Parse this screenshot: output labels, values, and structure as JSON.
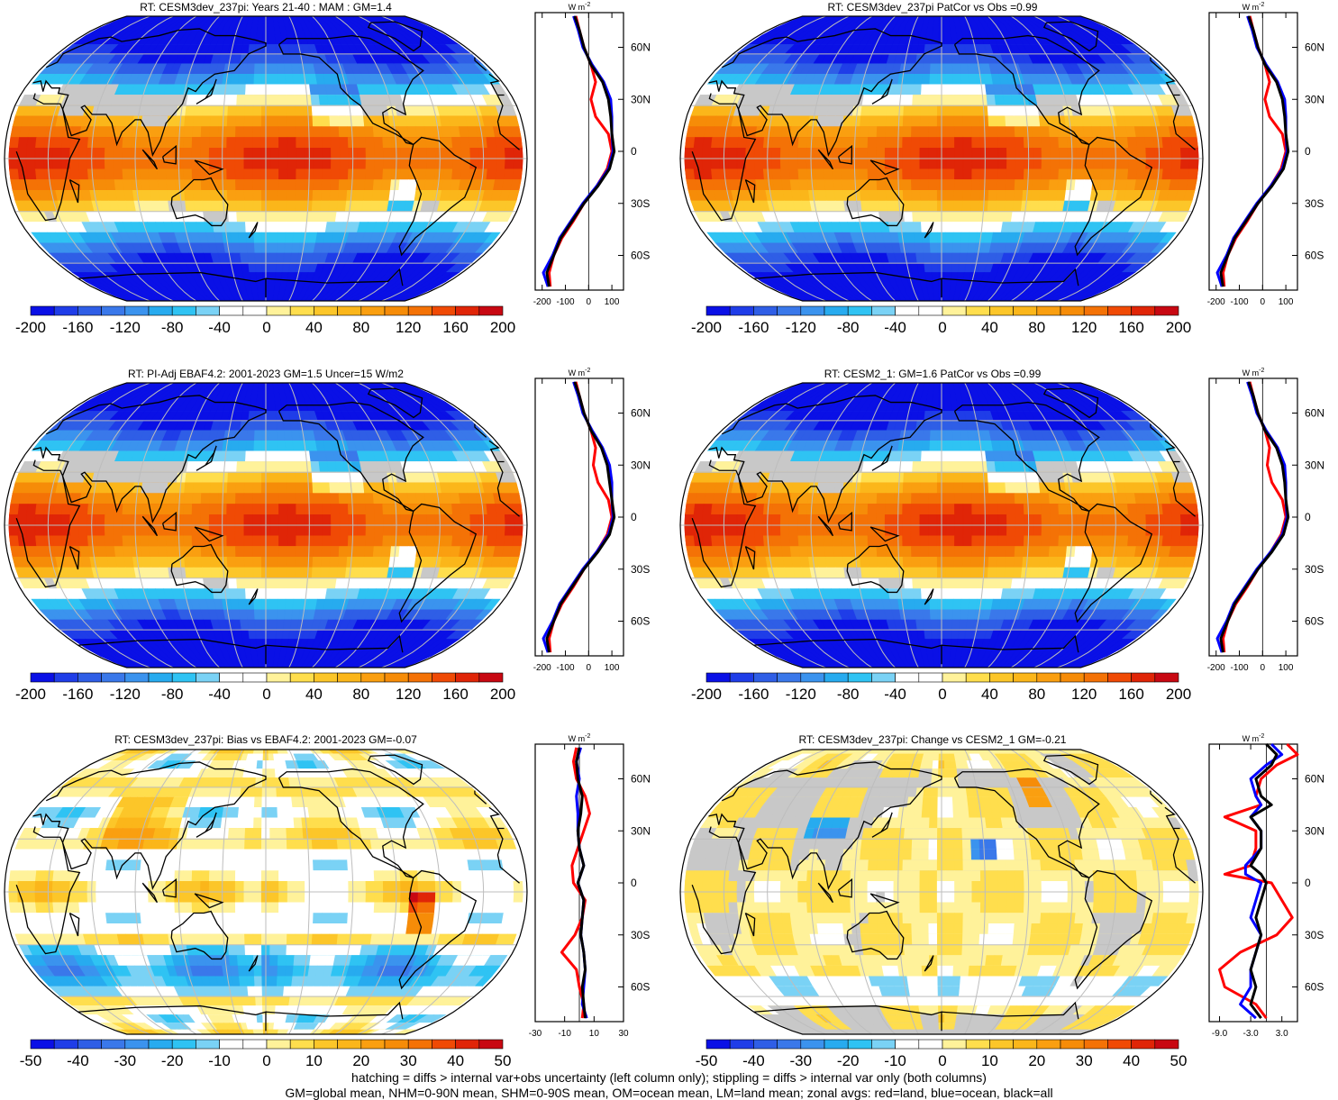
{
  "footer": {
    "line1": "hatching = diffs > internal var+obs uncertainty (left column only); stippling = diffs > internal var only (both columns)",
    "line2": "GM=global mean, NHM=0-90N mean, SHM=0-90S mean, OM=ocean mean, LM=land mean; zonal avgs: red=land, blue=ocean, black=all"
  },
  "colors": {
    "ocean_blue": "#0000ff",
    "land_red": "#ff0000",
    "all_black": "#000000",
    "land_mask": "#c8c8c8"
  },
  "chart_data": [
    {
      "type": "heatmap",
      "title": "RT: CESM3dev_237pi: Years 21-40 : MAM : GM=1.4",
      "pattern": "climatology",
      "stippled": true,
      "hatched": true,
      "colorbar": {
        "ticks": [
          "-200",
          "-160",
          "-120",
          "-80",
          "-40",
          "0",
          "40",
          "80",
          "120",
          "160",
          "200"
        ]
      },
      "zonal": {
        "unit": "W m",
        "unit_sup": "-2",
        "xticks": [
          "-200",
          "-100",
          "0",
          "100"
        ],
        "xlim": [
          -230,
          150
        ],
        "yticks": [
          "60N",
          "30N",
          "0",
          "30S",
          "60S"
        ],
        "lat": [
          78,
          70,
          60,
          50,
          40,
          30,
          20,
          10,
          0,
          -10,
          -20,
          -30,
          -40,
          -50,
          -60,
          -70,
          -78
        ],
        "all": [
          -60,
          -40,
          -20,
          10,
          60,
          85,
          95,
          100,
          110,
          90,
          40,
          -20,
          -70,
          -120,
          -150,
          -180,
          -170
        ],
        "ocean": [
          -65,
          -45,
          -25,
          15,
          65,
          95,
          100,
          100,
          105,
          85,
          35,
          -25,
          -75,
          -125,
          -155,
          -195,
          -175
        ],
        "land": [
          -55,
          -40,
          -20,
          10,
          30,
          10,
          30,
          85,
          100,
          80,
          35,
          -20,
          -65,
          -115,
          -150,
          -170,
          -165
        ]
      }
    },
    {
      "type": "heatmap",
      "title": "RT: CESM3dev_237pi PatCor vs Obs =0.99",
      "pattern": "climatology",
      "stippled": false,
      "hatched": false,
      "colorbar": {
        "ticks": [
          "-200",
          "-160",
          "-120",
          "-80",
          "-40",
          "0",
          "40",
          "80",
          "120",
          "160",
          "200"
        ]
      },
      "zonal": {
        "unit": "W m",
        "unit_sup": "-2",
        "xticks": [
          "-200",
          "-100",
          "0",
          "100"
        ],
        "xlim": [
          -230,
          150
        ],
        "yticks": [
          "60N",
          "30N",
          "0",
          "30S",
          "60S"
        ],
        "lat": [
          78,
          70,
          60,
          50,
          40,
          30,
          20,
          10,
          0,
          -10,
          -20,
          -30,
          -40,
          -50,
          -60,
          -70,
          -78
        ],
        "all": [
          -60,
          -40,
          -20,
          10,
          60,
          85,
          95,
          100,
          110,
          90,
          40,
          -20,
          -70,
          -120,
          -150,
          -180,
          -170
        ],
        "ocean": [
          -65,
          -45,
          -25,
          15,
          65,
          95,
          100,
          100,
          105,
          85,
          35,
          -25,
          -75,
          -125,
          -155,
          -195,
          -175
        ],
        "land": [
          -55,
          -40,
          -20,
          10,
          30,
          10,
          30,
          85,
          100,
          80,
          35,
          -20,
          -65,
          -115,
          -150,
          -170,
          -165
        ]
      }
    },
    {
      "type": "heatmap",
      "title": "RT: PI-Adj EBAF4.2: 2001-2023 GM=1.5 Uncer=15 W/m2",
      "pattern": "climatology",
      "stippled": true,
      "hatched": true,
      "colorbar": {
        "ticks": [
          "-200",
          "-160",
          "-120",
          "-80",
          "-40",
          "0",
          "40",
          "80",
          "120",
          "160",
          "200"
        ]
      },
      "zonal": {
        "unit": "W m",
        "unit_sup": "-2",
        "xticks": [
          "-200",
          "-100",
          "0",
          "100"
        ],
        "xlim": [
          -230,
          150
        ],
        "yticks": [
          "60N",
          "30N",
          "0",
          "30S",
          "60S"
        ],
        "lat": [
          78,
          70,
          60,
          50,
          40,
          30,
          20,
          10,
          0,
          -10,
          -20,
          -30,
          -40,
          -50,
          -60,
          -70,
          -78
        ],
        "all": [
          -60,
          -40,
          -20,
          10,
          55,
          80,
          90,
          100,
          110,
          90,
          40,
          -20,
          -70,
          -120,
          -150,
          -180,
          -170
        ],
        "ocean": [
          -65,
          -45,
          -25,
          15,
          60,
          90,
          100,
          100,
          105,
          85,
          35,
          -25,
          -75,
          -125,
          -155,
          -195,
          -175
        ],
        "land": [
          -55,
          -40,
          -20,
          10,
          30,
          20,
          40,
          85,
          100,
          80,
          35,
          -20,
          -65,
          -115,
          -150,
          -170,
          -165
        ]
      }
    },
    {
      "type": "heatmap",
      "title": "RT: CESM2_1: GM=1.6 PatCor vs Obs =0.99",
      "pattern": "climatology",
      "stippled": false,
      "hatched": false,
      "colorbar": {
        "ticks": [
          "-200",
          "-160",
          "-120",
          "-80",
          "-40",
          "0",
          "40",
          "80",
          "120",
          "160",
          "200"
        ]
      },
      "zonal": {
        "unit": "W m",
        "unit_sup": "-2",
        "xticks": [
          "-200",
          "-100",
          "0",
          "100"
        ],
        "xlim": [
          -230,
          150
        ],
        "yticks": [
          "60N",
          "30N",
          "0",
          "30S",
          "60S"
        ],
        "lat": [
          78,
          70,
          60,
          50,
          40,
          30,
          20,
          10,
          0,
          -10,
          -20,
          -30,
          -40,
          -50,
          -60,
          -70,
          -78
        ],
        "all": [
          -60,
          -40,
          -20,
          10,
          60,
          85,
          95,
          100,
          110,
          90,
          40,
          -20,
          -70,
          -120,
          -150,
          -180,
          -170
        ],
        "ocean": [
          -65,
          -45,
          -25,
          15,
          65,
          95,
          100,
          100,
          105,
          85,
          35,
          -25,
          -75,
          -125,
          -155,
          -195,
          -175
        ],
        "land": [
          -55,
          -40,
          -20,
          10,
          30,
          20,
          40,
          85,
          100,
          80,
          35,
          -20,
          -65,
          -115,
          -150,
          -170,
          -165
        ]
      }
    },
    {
      "type": "heatmap",
      "title": "RT: CESM3dev_237pi: Bias vs EBAF4.2: 2001-2023 GM=-0.07",
      "pattern": "bias",
      "stippled": true,
      "hatched": true,
      "colorbar": {
        "ticks": [
          "-50",
          "-40",
          "-30",
          "-20",
          "-10",
          "0",
          "10",
          "20",
          "30",
          "40",
          "50"
        ]
      },
      "zonal": {
        "unit": "W m",
        "unit_sup": "-2",
        "xticks": [
          "-30",
          "-10",
          "10",
          "30"
        ],
        "xlim": [
          -30,
          30
        ],
        "yticks": [
          "60N",
          "30N",
          "0",
          "30S",
          "60S"
        ],
        "lat": [
          78,
          70,
          60,
          50,
          40,
          30,
          20,
          10,
          0,
          -10,
          -20,
          -30,
          -40,
          -50,
          -60,
          -70,
          -78
        ],
        "all": [
          0,
          -2,
          -1,
          2,
          1,
          -1,
          0,
          3,
          -1,
          3,
          2,
          1,
          3,
          4,
          2,
          3,
          4
        ],
        "ocean": [
          1,
          -2,
          0,
          -2,
          -1,
          -1,
          0,
          3,
          -1,
          3,
          2,
          1,
          3,
          4,
          3,
          2,
          5
        ],
        "land": [
          -2,
          -4,
          -2,
          4,
          7,
          3,
          -1,
          -5,
          -4,
          4,
          2,
          -3,
          -12,
          -2,
          0,
          3,
          2
        ]
      }
    },
    {
      "type": "heatmap",
      "title": "RT: CESM3dev_237pi: Change vs CESM2_1 GM=-0.21",
      "pattern": "change",
      "stippled": true,
      "hatched": false,
      "colorbar": {
        "ticks": [
          "-50",
          "-40",
          "-30",
          "-20",
          "-10",
          "0",
          "10",
          "20",
          "30",
          "40",
          "50"
        ]
      },
      "zonal": {
        "unit": "W m",
        "unit_sup": "-2",
        "xticks": [
          "-9.0",
          "-3.0",
          "3.0"
        ],
        "xlim": [
          -11,
          6
        ],
        "yticks": [
          "60N",
          "30N",
          "0",
          "30S",
          "60S"
        ],
        "lat": [
          80,
          74,
          68,
          60,
          50,
          45,
          38,
          30,
          20,
          10,
          5,
          0,
          -10,
          -20,
          -30,
          -40,
          -50,
          -60,
          -70,
          -78
        ],
        "all": [
          0,
          2,
          1,
          -2,
          -1,
          1,
          -3,
          -1,
          -1,
          -3,
          -1,
          0,
          -1,
          -2,
          -1,
          -2,
          -3,
          -2,
          -3,
          -1
        ],
        "ocean": [
          1,
          3,
          0,
          -3,
          -2,
          -1,
          -3,
          -1,
          -1,
          -4,
          -4,
          -1,
          -2,
          -3,
          -1,
          -2,
          -3,
          -3,
          -5,
          -2
        ],
        "land": [
          4,
          6,
          2,
          -1,
          -2,
          -1,
          -8,
          -2,
          -2,
          -3,
          -8,
          1,
          3,
          5,
          2,
          -5,
          -9,
          -8,
          -2,
          0
        ]
      }
    }
  ]
}
